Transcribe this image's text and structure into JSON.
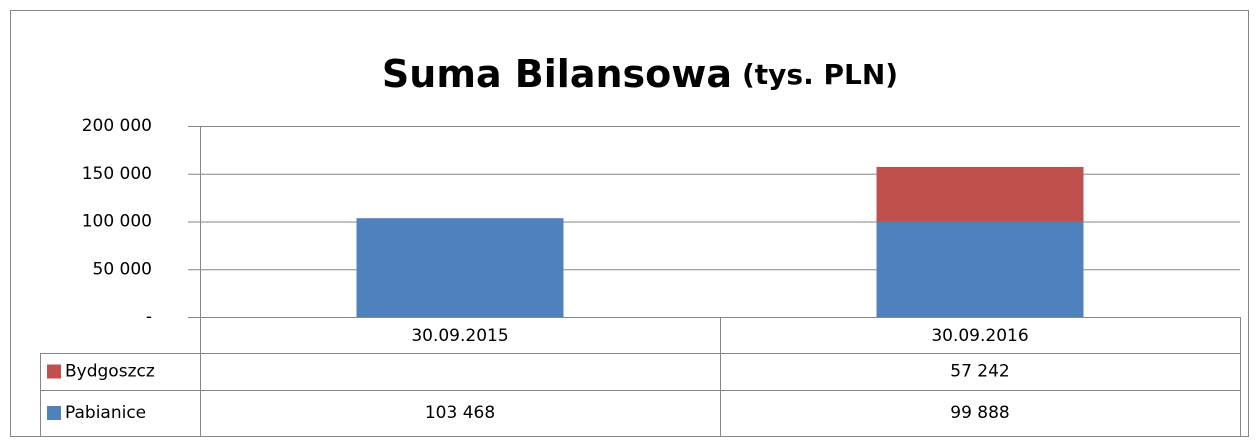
{
  "chart_data": {
    "type": "stacked_bar",
    "title": "Suma Bilansowa",
    "title_unit": "(tys. PLN)",
    "categories": [
      "30.09.2015",
      "30.09.2016"
    ],
    "series": [
      {
        "name": "Pabianice",
        "color": "#4f81bd",
        "values": [
          103468,
          99888
        ],
        "value_labels": [
          "103 468",
          "99 888"
        ]
      },
      {
        "name": "Bydgoszcz",
        "color": "#c0504d",
        "values": [
          null,
          57242
        ],
        "value_labels": [
          null,
          "57 242"
        ]
      }
    ],
    "ylim": [
      0,
      200000
    ],
    "yticks": [
      {
        "value": 0,
        "label": "-"
      },
      {
        "value": 50000,
        "label": "50 000"
      },
      {
        "value": 100000,
        "label": "100 000"
      },
      {
        "value": 150000,
        "label": "150 000"
      },
      {
        "value": 200000,
        "label": "200 000"
      }
    ],
    "grid": true,
    "legend": "data-table"
  }
}
